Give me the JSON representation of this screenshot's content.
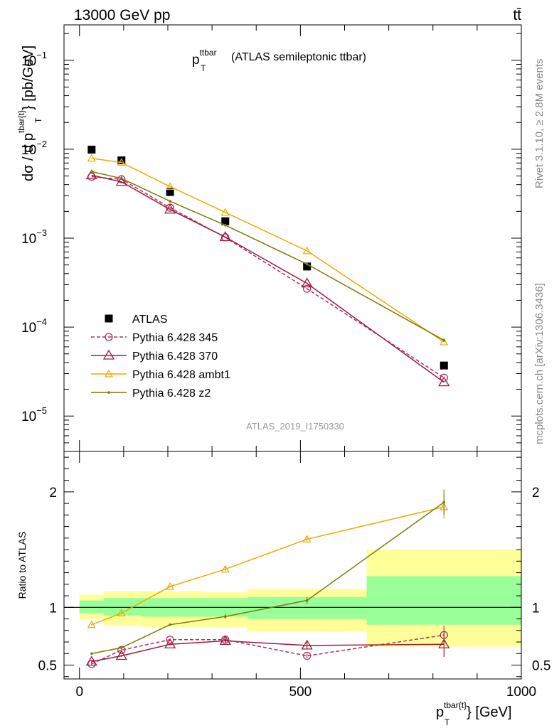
{
  "header": {
    "left": "13000 GeV pp",
    "right": "tt̄"
  },
  "side_labels": {
    "top": "Rivet 3.1.10, ≥ 2.8M events",
    "bottom": "mcplots.cern.ch [arXiv:1306.3436]"
  },
  "analysis_tag": "ATLAS_2019_I1750330",
  "colors": {
    "atlas": "#000000",
    "p345": "#b03060",
    "p370": "#a01c3c",
    "ambt1": "#f0a800",
    "z2": "#7c7c0a",
    "band_outer": "#ffff99",
    "band_inner": "#99ff99"
  },
  "chart_data": [
    {
      "type": "line",
      "panel": "main",
      "title_main": "p",
      "title_sub": "T",
      "title_sup": "ttbar",
      "title_rest": " (ATLAS semileptonic ttbar)",
      "ylabel": "dσ / d p_T^{tbar{t}} [pb/GeV]",
      "ylabel_parts": {
        "a": "dσ / d p",
        "sub": "T",
        "sup": "tbar{t}",
        "b": "} [pb/GeV]"
      },
      "yscale": "log",
      "ylim": [
        4e-06,
        0.25
      ],
      "xlim": [
        -35,
        1000
      ],
      "y_ticks": [
        {
          "value": 1e-05,
          "base": "10",
          "exp": "−5"
        },
        {
          "value": 0.0001,
          "base": "10",
          "exp": "−4"
        },
        {
          "value": 0.001,
          "base": "10",
          "exp": "−3"
        },
        {
          "value": 0.01,
          "base": "10",
          "exp": "−2"
        },
        {
          "value": 0.1,
          "base": "10",
          "exp": "−1"
        }
      ],
      "legend_position": "bottom-left",
      "series": [
        {
          "name": "ATLAS",
          "key": "atlas",
          "marker": "square",
          "x": [
            27.5,
            95,
            205,
            330,
            515,
            825
          ],
          "y": [
            0.0099,
            0.0075,
            0.0033,
            0.00155,
            0.00048,
            3.7e-05
          ]
        },
        {
          "name": "Pythia 6.428 345",
          "key": "p345",
          "marker": "circle",
          "dashed": true,
          "x": [
            27.5,
            95,
            205,
            330,
            515,
            825
          ],
          "y": [
            0.0049,
            0.0046,
            0.0022,
            0.00102,
            0.00027,
            2.7e-05
          ]
        },
        {
          "name": "Pythia 6.428 370",
          "key": "p370",
          "marker": "triangle",
          "x": [
            27.5,
            95,
            205,
            330,
            515,
            825
          ],
          "y": [
            0.0051,
            0.0043,
            0.0021,
            0.00103,
            0.00031,
            2.4e-05
          ]
        },
        {
          "name": "Pythia 6.428 ambt1",
          "key": "ambt1",
          "marker": "triangle-small",
          "x": [
            27.5,
            95,
            205,
            330,
            515,
            825
          ],
          "y": [
            0.0079,
            0.0071,
            0.0038,
            0.00195,
            0.00072,
            6.8e-05
          ]
        },
        {
          "name": "Pythia 6.428 z2",
          "key": "z2",
          "marker": "dot",
          "x": [
            27.5,
            95,
            205,
            330,
            515,
            825
          ],
          "y": [
            0.0056,
            0.0047,
            0.0026,
            0.0014,
            0.00051,
            7.1e-05
          ]
        }
      ]
    },
    {
      "type": "line",
      "panel": "ratio",
      "ylabel": "Ratio to ATLAS",
      "ylim": [
        0.38,
        2.35
      ],
      "xlim": [
        -35,
        1000
      ],
      "y_ticks": [
        {
          "value": 0.5,
          "label": "0.5"
        },
        {
          "value": 1,
          "label": "1"
        },
        {
          "value": 2,
          "label": "2"
        }
      ],
      "x_ticks": [
        {
          "value": 0,
          "label": "0"
        },
        {
          "value": 500,
          "label": "500"
        },
        {
          "value": 1000,
          "label": "1000"
        }
      ],
      "xlabel_parts": {
        "a": "p",
        "sub": "T",
        "sup": "tbar{t}",
        "b": "} [GeV]"
      },
      "bands": [
        {
          "x0": 0,
          "x1": 55,
          "outer": [
            0.9,
            1.11
          ],
          "inner": [
            0.95,
            1.06
          ]
        },
        {
          "x0": 55,
          "x1": 140,
          "outer": [
            0.84,
            1.14
          ],
          "inner": [
            0.93,
            1.08
          ]
        },
        {
          "x0": 140,
          "x1": 280,
          "outer": [
            0.83,
            1.14
          ],
          "inner": [
            0.92,
            1.08
          ]
        },
        {
          "x0": 280,
          "x1": 380,
          "outer": [
            0.83,
            1.13
          ],
          "inner": [
            0.92,
            1.08
          ]
        },
        {
          "x0": 380,
          "x1": 650,
          "outer": [
            0.79,
            1.16
          ],
          "inner": [
            0.9,
            1.09
          ]
        },
        {
          "x0": 650,
          "x1": 1000,
          "outer": [
            0.66,
            1.5
          ],
          "inner": [
            0.85,
            1.27
          ]
        }
      ],
      "series": [
        {
          "name": "Pythia 6.428 345",
          "key": "p345",
          "marker": "circle",
          "dashed": true,
          "x": [
            27.5,
            95,
            205,
            330,
            515,
            825
          ],
          "y": [
            0.51,
            0.63,
            0.72,
            0.72,
            0.58,
            0.76
          ],
          "err": [
            0.01,
            0.01,
            0.01,
            0.02,
            0.02,
            0.08
          ]
        },
        {
          "name": "Pythia 6.428 370",
          "key": "p370",
          "marker": "triangle",
          "x": [
            27.5,
            95,
            205,
            330,
            515,
            825
          ],
          "y": [
            0.53,
            0.58,
            0.68,
            0.71,
            0.67,
            0.68
          ],
          "err": [
            0.01,
            0.01,
            0.01,
            0.02,
            0.03,
            0.11
          ]
        },
        {
          "name": "Pythia 6.428 ambt1",
          "key": "ambt1",
          "marker": "triangle-small",
          "x": [
            27.5,
            95,
            205,
            330,
            515,
            825
          ],
          "y": [
            0.85,
            0.95,
            1.18,
            1.33,
            1.59,
            1.87
          ],
          "err": [
            0.01,
            0.01,
            0.01,
            0.02,
            0.02,
            0.1
          ]
        },
        {
          "name": "Pythia 6.428 z2",
          "key": "z2",
          "marker": "dot",
          "x": [
            27.5,
            95,
            205,
            330,
            515,
            825
          ],
          "y": [
            0.6,
            0.65,
            0.85,
            0.92,
            1.06,
            1.91
          ],
          "err": [
            0.01,
            0.01,
            0.01,
            0.02,
            0.03,
            0.11
          ]
        }
      ]
    }
  ]
}
